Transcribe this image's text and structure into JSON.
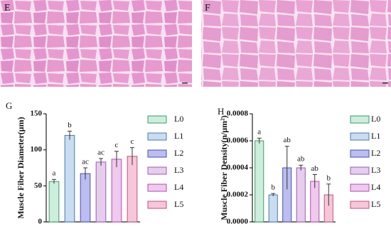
{
  "image_labels": [
    "E",
    "F"
  ],
  "chart_data": [
    {
      "type": "bar",
      "panel_label": "G",
      "ylabel": "Muscle Fiber Diameter(μm)",
      "categories": [
        "L0",
        "L1",
        "L2",
        "L3",
        "L4",
        "L5"
      ],
      "values": [
        56,
        120,
        67,
        83,
        87,
        91
      ],
      "errors": [
        3,
        6,
        8,
        5,
        11,
        12
      ],
      "annotations": [
        "a",
        "b",
        "ac",
        "ac",
        "c",
        "c"
      ],
      "colors": [
        "#cdeedd",
        "#c9dcf0",
        "#bcbdf0",
        "#e6cdee",
        "#efc9ee",
        "#f7c6da"
      ],
      "edge_colors": [
        "#3f9a6a",
        "#4a78b0",
        "#4a4fb0",
        "#9a5cae",
        "#b04eac",
        "#c0507a"
      ],
      "ylim": [
        0,
        150
      ],
      "yticks": [
        0,
        50,
        100,
        150
      ]
    },
    {
      "type": "bar",
      "panel_label": "H",
      "ylabel": "Muscle Fiber Density(n/μm²)",
      "categories": [
        "L0",
        "L1",
        "L2",
        "L3",
        "L4",
        "L5"
      ],
      "values": [
        0.0006,
        0.0002,
        0.0004,
        0.0004,
        0.0003,
        0.0002
      ],
      "errors": [
        2e-05,
        1e-05,
        0.00016,
        2e-05,
        5e-05,
        8e-05
      ],
      "annotations": [
        "a",
        "b",
        "ab",
        "ab",
        "ab",
        "b"
      ],
      "colors": [
        "#cdeedd",
        "#c9dcf0",
        "#bcbdf0",
        "#e6cdee",
        "#efc9ee",
        "#f7c6da"
      ],
      "edge_colors": [
        "#3f9a6a",
        "#4a78b0",
        "#4a4fb0",
        "#9a5cae",
        "#b04eac",
        "#c0507a"
      ],
      "ylim": [
        0,
        0.0008
      ],
      "yticks": [
        {
          "value": 0,
          "label": "0.0000"
        },
        {
          "value": 0.0002,
          "label": "0.0002"
        },
        {
          "value": 0.0004,
          "label": "0.0004"
        },
        {
          "value": 0.0006,
          "label": "0.0006"
        },
        {
          "value": 0.0008,
          "label": "0.0008"
        }
      ]
    }
  ]
}
